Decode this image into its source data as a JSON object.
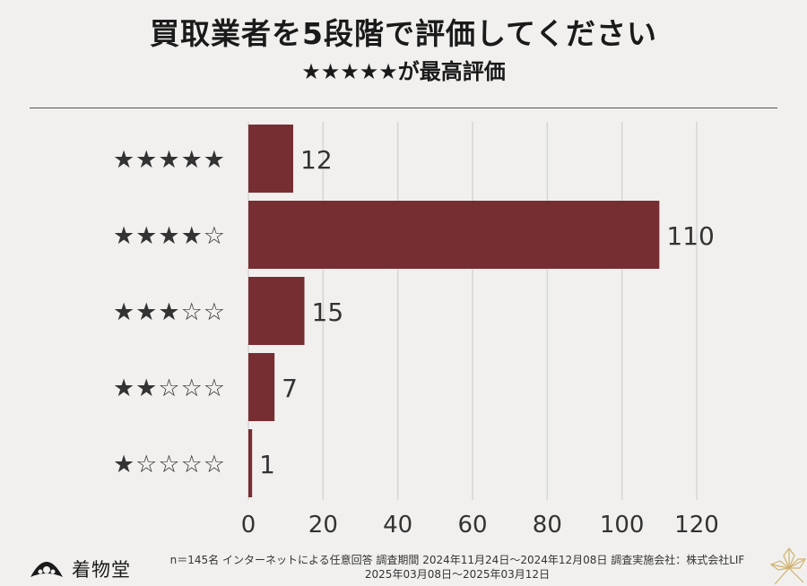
{
  "header": {
    "title": "買取業者を5段階で評価してください",
    "subtitle": "★★★★★が最高評価"
  },
  "footer": {
    "note_line1": "n＝145名 インターネットによる任意回答 調査期間 2024年11月24日〜2024年12月08日 調査実施会社：株式会社LIF",
    "note_line2": "2025年03月08日〜2025年03月12日",
    "logo_text": "着物堂"
  },
  "chart_data": {
    "type": "bar",
    "orientation": "horizontal",
    "categories": [
      "★★★★★",
      "★★★★☆",
      "★★★☆☆",
      "★★☆☆☆",
      "★☆☆☆☆"
    ],
    "values": [
      12,
      110,
      15,
      7,
      1
    ],
    "xlim": [
      0,
      120
    ],
    "xticks": [
      0,
      20,
      40,
      60,
      80,
      100,
      120
    ],
    "grid": true,
    "bar_color": "#772e33",
    "grid_color": "#d6d5d3"
  }
}
